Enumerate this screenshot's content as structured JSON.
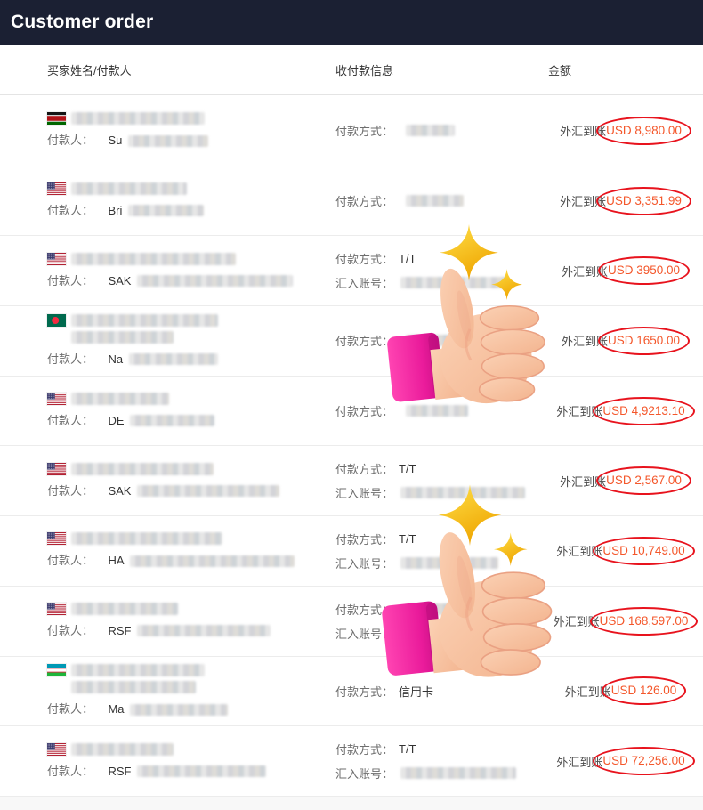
{
  "app": {
    "title": "Customer order"
  },
  "table": {
    "columns": [
      {
        "label": "买家姓名/付款人"
      },
      {
        "label": "收付款信息"
      },
      {
        "label": "金额"
      }
    ]
  },
  "labels": {
    "payer": "付款人：",
    "method": "付款方式：",
    "account": "汇入账号：",
    "received": "外汇到账"
  },
  "colors": {
    "header_bg": "#1b2033",
    "amount_text": "#f4572b",
    "circle_stroke": "#e8131d"
  },
  "overlays": [
    {
      "icon": "thumbs-up-sparkles-emoji"
    },
    {
      "icon": "thumbs-up-sparkles-emoji"
    }
  ],
  "rows": [
    {
      "flag": "kenya",
      "buyer_redacted": [
        150
      ],
      "payer_prefix": "Su",
      "payer_redacted": 90,
      "method_value": "",
      "method_redacted": 55,
      "account_redacted": null,
      "amount": "USD 8,980.00"
    },
    {
      "flag": "usa",
      "buyer_redacted": [
        130
      ],
      "payer_prefix": "Bri",
      "payer_redacted": 85,
      "method_value": "",
      "method_redacted": 65,
      "account_redacted": null,
      "amount": "USD 3,351.99"
    },
    {
      "flag": "usa",
      "buyer_redacted": [
        185
      ],
      "payer_prefix": "SAK",
      "payer_redacted": 175,
      "method_value": "T/T",
      "method_redacted": null,
      "account_redacted": 120,
      "amount": "USD 3950.00"
    },
    {
      "flag": "bangladesh",
      "buyer_redacted": [
        165,
        115
      ],
      "payer_prefix": "Na",
      "payer_redacted": 100,
      "method_value": "",
      "method_redacted": 60,
      "account_redacted": null,
      "amount": "USD 1650.00"
    },
    {
      "flag": "usa",
      "buyer_redacted": [
        110
      ],
      "payer_prefix": "DE",
      "payer_redacted": 95,
      "method_value": "",
      "method_redacted": 70,
      "account_redacted": null,
      "amount": "USD 4,9213.10"
    },
    {
      "flag": "usa",
      "buyer_redacted": [
        160
      ],
      "payer_prefix": "SAK",
      "payer_redacted": 160,
      "method_value": "T/T",
      "method_redacted": null,
      "account_redacted": 140,
      "amount": "USD 2,567.00"
    },
    {
      "flag": "usa",
      "buyer_redacted": [
        170
      ],
      "payer_prefix": "HA",
      "payer_redacted": 185,
      "method_value": "T/T",
      "method_redacted": null,
      "account_redacted": 110,
      "amount": "USD 10,749.00"
    },
    {
      "flag": "usa",
      "buyer_redacted": [
        120
      ],
      "payer_prefix": "RSF",
      "payer_redacted": 150,
      "method_value": "",
      "method_redacted": 60,
      "account_redacted": 60,
      "amount": "USD 168,597.00"
    },
    {
      "flag": "uzbekistan",
      "buyer_redacted": [
        150,
        140
      ],
      "payer_prefix": "Ma",
      "payer_redacted": 110,
      "method_value": "信用卡",
      "method_redacted": null,
      "account_redacted": null,
      "amount": "USD 126.00"
    },
    {
      "flag": "usa",
      "buyer_redacted": [
        115
      ],
      "payer_prefix": "RSF",
      "payer_redacted": 145,
      "method_value": "T/T",
      "method_redacted": null,
      "account_redacted": 130,
      "amount": "USD 72,256.00"
    }
  ]
}
